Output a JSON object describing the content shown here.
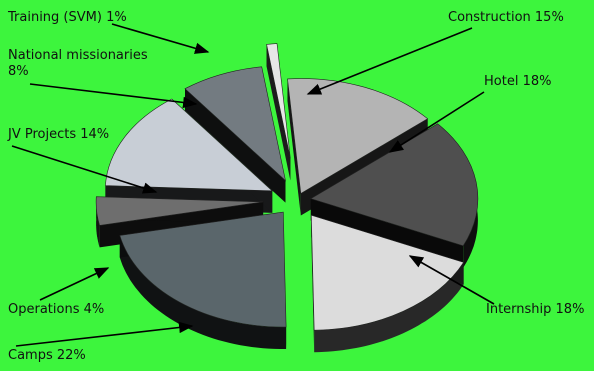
{
  "chart_data": {
    "type": "pie",
    "style": "3d-exploded",
    "background": "#3df53d",
    "slices": [
      {
        "label": "Construction",
        "text": "Construction 15%",
        "value": 15,
        "color": "#b4b4b4"
      },
      {
        "label": "Hotel",
        "text": "Hotel 18%",
        "value": 18,
        "color": "#4f4f4f"
      },
      {
        "label": "Internship",
        "text": "Internship 18%",
        "value": 18,
        "color": "#dcdcdc"
      },
      {
        "label": "Camps",
        "text": "Camps 22%",
        "value": 22,
        "color": "#5a666b"
      },
      {
        "label": "Operations",
        "text": "Operations 4%",
        "value": 4,
        "color": "#6e6e6e"
      },
      {
        "label": "JV Projects",
        "text": "JV Projects 14%",
        "value": 14,
        "color": "#c8ced6"
      },
      {
        "label": "National missionaries",
        "text": "National missionaries 8%",
        "value": 8,
        "color": "#737b81"
      },
      {
        "label": "Training (SVM)",
        "text": "Training (SVM) 1%",
        "value": 1,
        "color": "#e6e6e6"
      }
    ]
  }
}
